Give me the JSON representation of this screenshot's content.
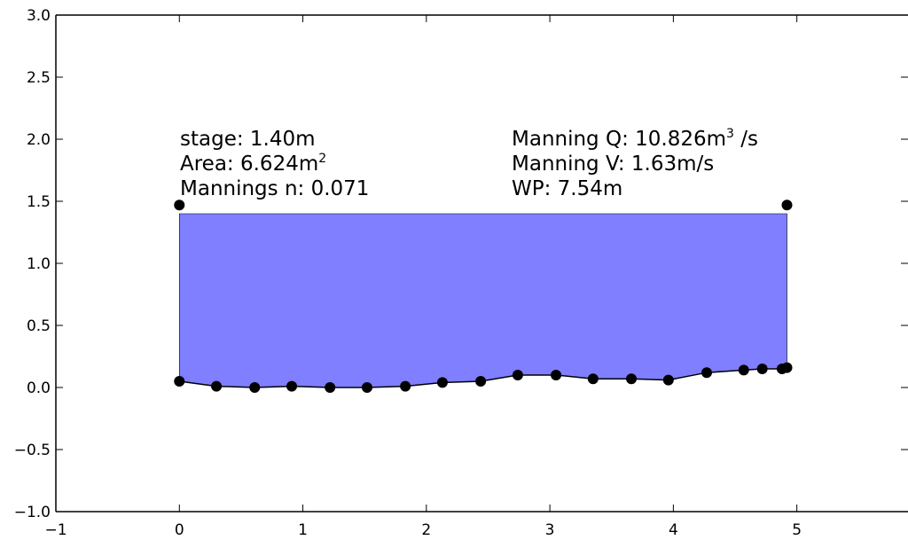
{
  "chart_data": {
    "type": "area",
    "title": "",
    "xlabel": "",
    "ylabel": "",
    "xlim": [
      -1,
      5.9
    ],
    "ylim": [
      -1.0,
      3.0
    ],
    "grid": false,
    "x_ticks": [
      -1,
      0,
      1,
      2,
      3,
      4,
      5
    ],
    "x_tick_labels": [
      "−1",
      "0",
      "1",
      "2",
      "3",
      "4",
      "5"
    ],
    "y_ticks": [
      -1.0,
      -0.5,
      0.0,
      0.5,
      1.0,
      1.5,
      2.0,
      2.5,
      3.0
    ],
    "y_tick_labels": [
      "−1.0",
      "−0.5",
      "0.0",
      "0.5",
      "1.0",
      "1.5",
      "2.0",
      "2.5",
      "3.0"
    ],
    "water_surface": 1.4,
    "fill_color": "#7f7fff",
    "profile": {
      "x": [
        0.0,
        0.3,
        0.61,
        0.91,
        1.22,
        1.52,
        1.83,
        2.13,
        2.44,
        2.74,
        3.05,
        3.35,
        3.66,
        3.96,
        4.27,
        4.57,
        4.72,
        4.88,
        4.92
      ],
      "y": [
        0.05,
        0.01,
        0.0,
        0.01,
        0.0,
        0.0,
        0.01,
        0.04,
        0.05,
        0.1,
        0.1,
        0.07,
        0.07,
        0.06,
        0.12,
        0.14,
        0.15,
        0.15,
        0.16
      ]
    },
    "bank_points": {
      "x": [
        0.0,
        4.92
      ],
      "y": [
        1.47,
        1.47
      ]
    },
    "annotations": {
      "left": [
        {
          "text": "stage: 1.40m"
        },
        {
          "text": "Area: 6.624m",
          "sup": "2"
        },
        {
          "text": "Mannings n: 0.071"
        }
      ],
      "right": [
        {
          "text": "Manning Q: 10.826m",
          "sup": "3",
          "tail": " /s"
        },
        {
          "text": "Manning V: 1.63m/s"
        },
        {
          "text": "WP: 7.54m"
        }
      ]
    }
  }
}
